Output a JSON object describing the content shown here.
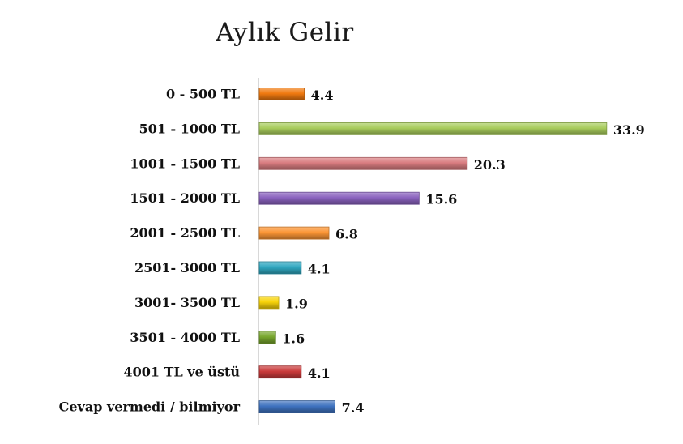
{
  "chart_data": {
    "type": "bar",
    "orientation": "horizontal",
    "title": "Aylık Gelir",
    "xlabel": "",
    "ylabel": "",
    "xlim": [
      0,
      35
    ],
    "grid": false,
    "legend": "none",
    "categories": [
      "0 - 500 TL",
      "501 - 1000 TL",
      "1001 - 1500 TL",
      "1501 -  2000 TL",
      "2001 - 2500 TL",
      "2501- 3000 TL",
      "3001- 3500 TL",
      "3501 - 4000 TL",
      "4001 TL ve üstü",
      "Cevap vermedi / bilmiyor"
    ],
    "values": [
      4.4,
      33.9,
      20.3,
      15.6,
      6.8,
      4.1,
      1.9,
      1.6,
      4.1,
      7.4
    ],
    "value_labels": [
      "4.4",
      "33.9",
      "20.3",
      "15.6",
      "6.8",
      "4.1",
      "1.9",
      "1.6",
      "4.1",
      "7.4"
    ],
    "colors": [
      "#F07A10",
      "#A8CC5C",
      "#D97C80",
      "#8A62BE",
      "#FB9534",
      "#2FA7C0",
      "#F8D40A",
      "#79A82E",
      "#C9393A",
      "#3E72BF"
    ]
  }
}
